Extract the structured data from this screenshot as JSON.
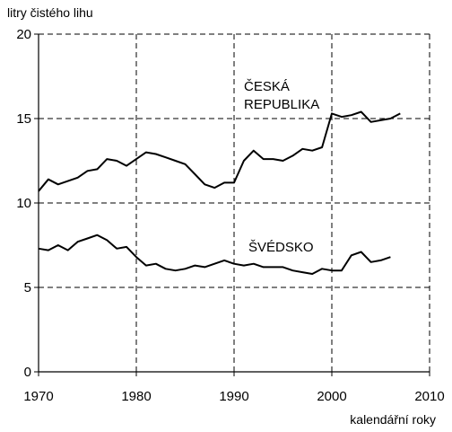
{
  "chart_data": {
    "type": "line",
    "title": "",
    "ylabel": "litry čistého lihu",
    "xlabel": "kalendářní roky",
    "xlim": [
      1970,
      2010
    ],
    "ylim": [
      0,
      20
    ],
    "x_ticks": [
      1970,
      1980,
      1990,
      2000,
      2010
    ],
    "y_ticks": [
      0,
      5,
      10,
      15,
      20
    ],
    "grid": "dashed",
    "legend": "none (series labelled by in-plot annotations)",
    "annotations": [
      {
        "text_lines": [
          "ČESKÁ",
          "REPUBLIKA"
        ],
        "series": 0
      },
      {
        "text_lines": [
          "ŠVÉDSKO"
        ],
        "series": 1
      }
    ],
    "series": [
      {
        "name": "ČESKÁ REPUBLIKA",
        "color": "#000000",
        "points": [
          [
            1970,
            10.7
          ],
          [
            1971,
            11.4
          ],
          [
            1972,
            11.1
          ],
          [
            1973,
            11.3
          ],
          [
            1974,
            11.5
          ],
          [
            1975,
            11.9
          ],
          [
            1976,
            12.0
          ],
          [
            1977,
            12.6
          ],
          [
            1978,
            12.5
          ],
          [
            1979,
            12.2
          ],
          [
            1980,
            12.6
          ],
          [
            1981,
            13.0
          ],
          [
            1982,
            12.9
          ],
          [
            1983,
            12.7
          ],
          [
            1984,
            12.5
          ],
          [
            1985,
            12.3
          ],
          [
            1986,
            11.7
          ],
          [
            1987,
            11.1
          ],
          [
            1988,
            10.9
          ],
          [
            1989,
            11.2
          ],
          [
            1990,
            11.2
          ],
          [
            1991,
            12.5
          ],
          [
            1992,
            13.1
          ],
          [
            1993,
            12.6
          ],
          [
            1994,
            12.6
          ],
          [
            1995,
            12.5
          ],
          [
            1996,
            12.8
          ],
          [
            1997,
            13.2
          ],
          [
            1998,
            13.1
          ],
          [
            1999,
            13.3
          ],
          [
            2000,
            15.3
          ],
          [
            2001,
            15.1
          ],
          [
            2002,
            15.2
          ],
          [
            2003,
            15.4
          ],
          [
            2004,
            14.8
          ],
          [
            2005,
            14.9
          ],
          [
            2006,
            15.0
          ],
          [
            2007,
            15.3
          ]
        ]
      },
      {
        "name": "ŠVÉDSKO",
        "color": "#000000",
        "points": [
          [
            1970,
            7.3
          ],
          [
            1971,
            7.2
          ],
          [
            1972,
            7.5
          ],
          [
            1973,
            7.2
          ],
          [
            1974,
            7.7
          ],
          [
            1975,
            7.9
          ],
          [
            1976,
            8.1
          ],
          [
            1977,
            7.8
          ],
          [
            1978,
            7.3
          ],
          [
            1979,
            7.4
          ],
          [
            1980,
            6.8
          ],
          [
            1981,
            6.3
          ],
          [
            1982,
            6.4
          ],
          [
            1983,
            6.1
          ],
          [
            1984,
            6.0
          ],
          [
            1985,
            6.1
          ],
          [
            1986,
            6.3
          ],
          [
            1987,
            6.2
          ],
          [
            1988,
            6.4
          ],
          [
            1989,
            6.6
          ],
          [
            1990,
            6.4
          ],
          [
            1991,
            6.3
          ],
          [
            1992,
            6.4
          ],
          [
            1993,
            6.2
          ],
          [
            1994,
            6.2
          ],
          [
            1995,
            6.2
          ],
          [
            1996,
            6.0
          ],
          [
            1997,
            5.9
          ],
          [
            1998,
            5.8
          ],
          [
            1999,
            6.1
          ],
          [
            2000,
            6.0
          ],
          [
            2001,
            6.0
          ],
          [
            2002,
            6.9
          ],
          [
            2003,
            7.1
          ],
          [
            2004,
            6.5
          ],
          [
            2005,
            6.6
          ],
          [
            2006,
            6.8
          ]
        ]
      }
    ]
  }
}
